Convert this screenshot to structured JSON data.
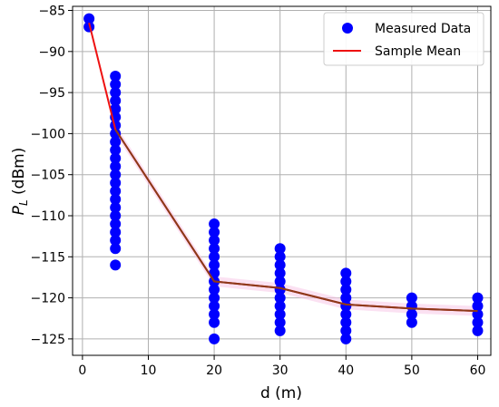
{
  "chart_data": {
    "type": "scatter",
    "xlabel": "d (m)",
    "ylabel_main": "P",
    "ylabel_sub": "L",
    "ylabel_unit": " (dBm)",
    "xlim": [
      -1.5,
      62
    ],
    "ylim": [
      -127,
      -84.5
    ],
    "x_ticks": [
      0,
      10,
      20,
      30,
      40,
      50,
      60
    ],
    "y_ticks": [
      -85,
      -90,
      -95,
      -100,
      -105,
      -110,
      -115,
      -120,
      -125
    ],
    "x_tick_labels": [
      "0",
      "10",
      "20",
      "30",
      "40",
      "50",
      "60"
    ],
    "y_tick_labels": [
      "−85",
      "−90",
      "−95",
      "−100",
      "−105",
      "−110",
      "−115",
      "−120",
      "−125"
    ],
    "grid": true,
    "legend_position": "top-right",
    "series": [
      {
        "name": "Measured Data",
        "kind": "scatter",
        "color": "#0000ff",
        "points": [
          [
            1,
            -86
          ],
          [
            1,
            -87
          ],
          [
            5,
            -93
          ],
          [
            5,
            -94
          ],
          [
            5,
            -95
          ],
          [
            5,
            -96
          ],
          [
            5,
            -97
          ],
          [
            5,
            -98
          ],
          [
            5,
            -99
          ],
          [
            5,
            -100
          ],
          [
            5,
            -101
          ],
          [
            5,
            -102
          ],
          [
            5,
            -103
          ],
          [
            5,
            -104
          ],
          [
            5,
            -105
          ],
          [
            5,
            -106
          ],
          [
            5,
            -107
          ],
          [
            5,
            -108
          ],
          [
            5,
            -109
          ],
          [
            5,
            -110
          ],
          [
            5,
            -111
          ],
          [
            5,
            -112
          ],
          [
            5,
            -113
          ],
          [
            5,
            -114
          ],
          [
            5,
            -116
          ],
          [
            20,
            -111
          ],
          [
            20,
            -112
          ],
          [
            20,
            -113
          ],
          [
            20,
            -114
          ],
          [
            20,
            -115
          ],
          [
            20,
            -116
          ],
          [
            20,
            -117
          ],
          [
            20,
            -118
          ],
          [
            20,
            -119
          ],
          [
            20,
            -120
          ],
          [
            20,
            -121
          ],
          [
            20,
            -122
          ],
          [
            20,
            -123
          ],
          [
            20,
            -125
          ],
          [
            30,
            -114
          ],
          [
            30,
            -115
          ],
          [
            30,
            -116
          ],
          [
            30,
            -117
          ],
          [
            30,
            -118
          ],
          [
            30,
            -119
          ],
          [
            30,
            -120
          ],
          [
            30,
            -121
          ],
          [
            30,
            -122
          ],
          [
            30,
            -123
          ],
          [
            30,
            -124
          ],
          [
            40,
            -117
          ],
          [
            40,
            -118
          ],
          [
            40,
            -119
          ],
          [
            40,
            -120
          ],
          [
            40,
            -121
          ],
          [
            40,
            -122
          ],
          [
            40,
            -123
          ],
          [
            40,
            -124
          ],
          [
            40,
            -125
          ],
          [
            50,
            -120
          ],
          [
            50,
            -121
          ],
          [
            50,
            -122
          ],
          [
            50,
            -123
          ],
          [
            60,
            -120
          ],
          [
            60,
            -121
          ],
          [
            60,
            -122
          ],
          [
            60,
            -123
          ],
          [
            60,
            -124
          ]
        ]
      },
      {
        "name": "Sample Mean",
        "kind": "line",
        "color": "#ee1111",
        "x": [
          1,
          5,
          20,
          30,
          40,
          50,
          60
        ],
        "y": [
          -86.5,
          -99.5,
          -118.0,
          -118.8,
          -120.8,
          -121.3,
          -121.6
        ]
      }
    ],
    "band": {
      "color": "#f8c8e8",
      "x": [
        5,
        20,
        30,
        40,
        50,
        60
      ],
      "y": [
        -99.5,
        -118.0,
        -118.8,
        -120.8,
        -121.3,
        -121.6
      ]
    },
    "overlay_color": "#8b3a1a"
  }
}
